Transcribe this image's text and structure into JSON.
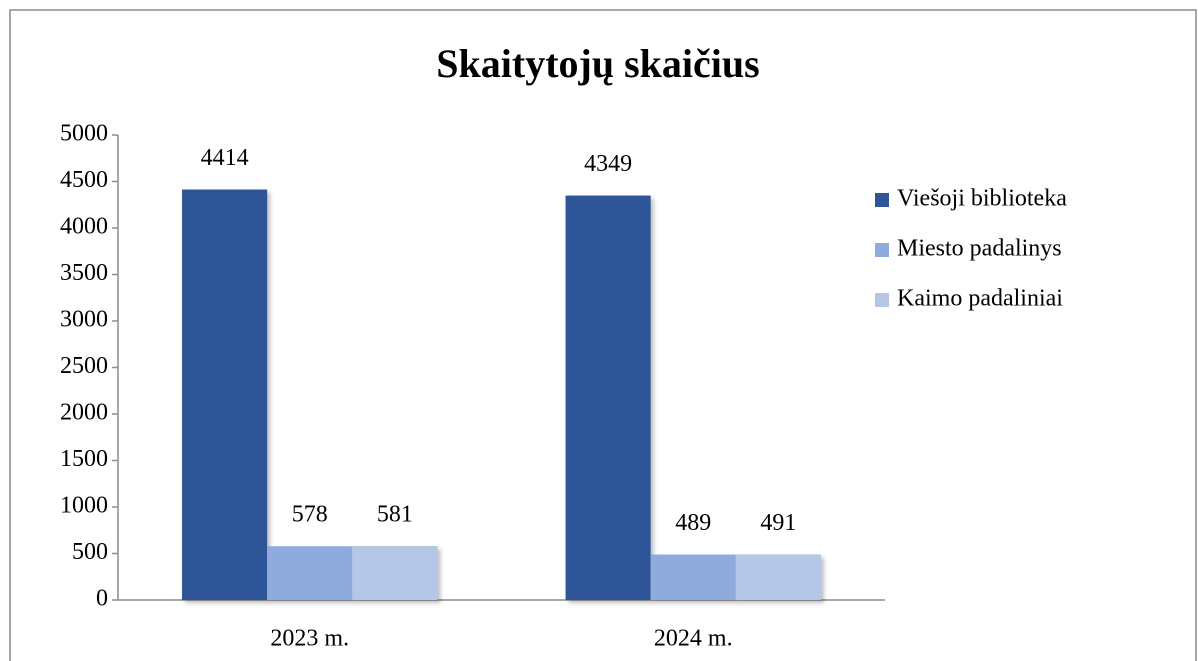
{
  "chart_data": {
    "type": "bar",
    "title": "Skaitytojų skaičius",
    "categories": [
      "2023 m.",
      "2024 m."
    ],
    "series": [
      {
        "name": "Viešoji biblioteka",
        "color": "#2f5597",
        "values": [
          4414,
          4349
        ]
      },
      {
        "name": "Miesto padalinys",
        "color": "#8faadc",
        "values": [
          578,
          489
        ]
      },
      {
        "name": "Kaimo padaliniai",
        "color": "#b4c7e7",
        "values": [
          581,
          491
        ]
      }
    ],
    "ylim": [
      0,
      5000
    ],
    "yticks": [
      0,
      500,
      1000,
      1500,
      2000,
      2500,
      3000,
      3500,
      4000,
      4500,
      5000
    ],
    "grid": false,
    "legend": "right"
  }
}
